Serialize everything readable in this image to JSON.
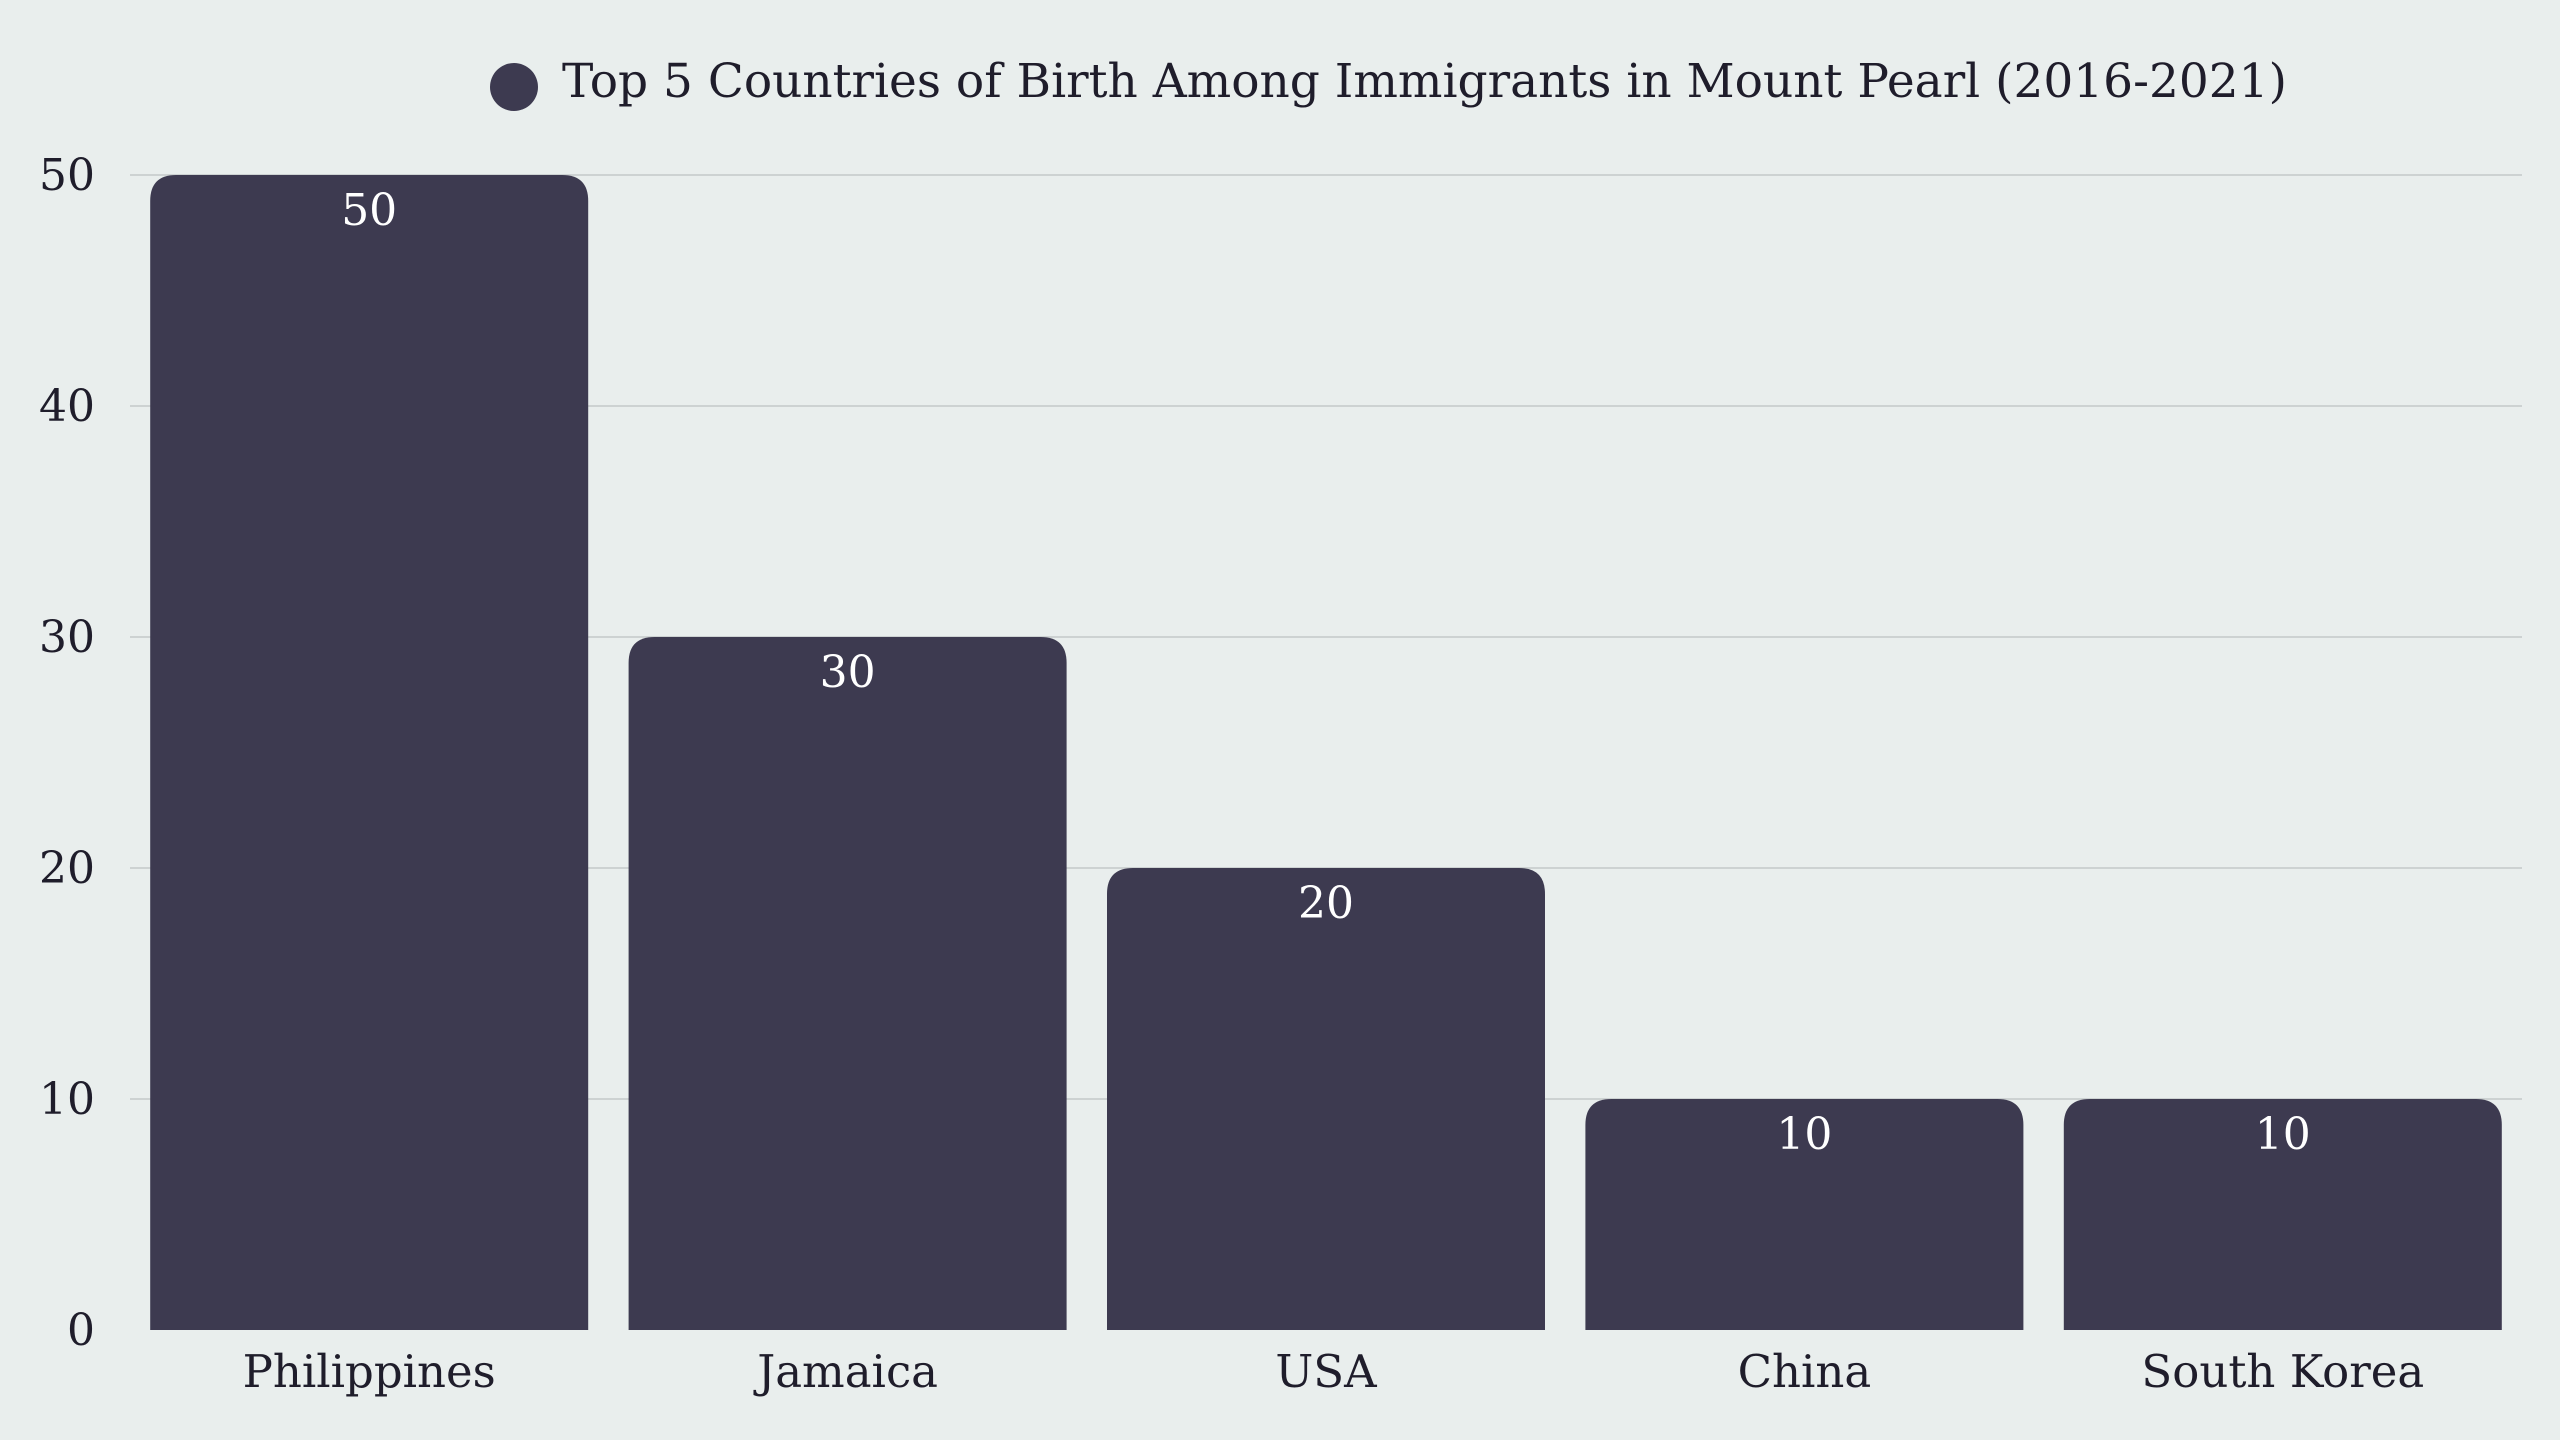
{
  "chart_data": {
    "type": "bar",
    "categories": [
      "Philippines",
      "Jamaica",
      "USA",
      "China",
      "South Korea"
    ],
    "series": [
      {
        "name": "Top 5 Countries of Birth Among Immigrants in Mount Pearl (2016-2021)",
        "values": [
          50,
          30,
          20,
          10,
          10
        ],
        "color": "#3d3a50"
      }
    ],
    "ylim": [
      0,
      50
    ],
    "yticks": [
      0,
      10,
      20,
      30,
      40,
      50
    ],
    "grid": true,
    "legend_position": "top-center",
    "data_labels": true,
    "colors": {
      "background": "#e9eeed",
      "bar": "#3d3a50",
      "grid": "#cdd2d2",
      "text": "#1f1d2b",
      "data_label": "#ffffff"
    }
  }
}
